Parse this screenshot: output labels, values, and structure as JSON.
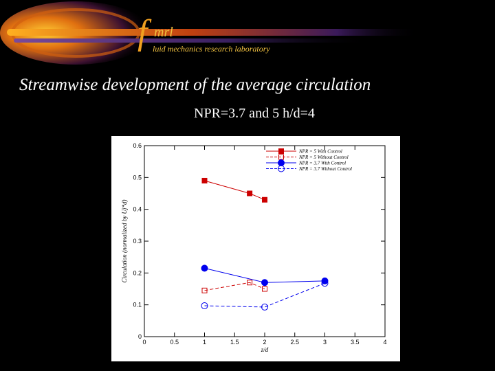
{
  "header": {
    "logo_f": "f",
    "logo_mrl": "mrl",
    "logo_subtitle": "luid mechanics research laboratory",
    "title": "Streamwise development of the average circulation",
    "subtitle": "NPR=3.7 and 5 h/d=4"
  },
  "colors": {
    "background": "#000000",
    "banner_orange": "#f0a020",
    "banner_purple": "#5a2a7a",
    "series_red": "#cc0000",
    "series_blue": "#0000ee"
  },
  "chart_data": {
    "type": "line",
    "title": "",
    "xlabel": "z/d",
    "ylabel": "Circulation (normalized by Uj*d)",
    "xlim": [
      0,
      4
    ],
    "ylim": [
      0,
      0.6
    ],
    "xticks": [
      "0",
      "0.5",
      "1",
      "1.5",
      "2",
      "2.5",
      "3",
      "3.5",
      "4"
    ],
    "yticks": [
      "0",
      "0.1",
      "0.2",
      "0.3",
      "0.4",
      "0.5",
      "0.6"
    ],
    "grid": false,
    "legend": "top-right",
    "series": [
      {
        "name": "NPR = 5 With Control",
        "color": "#cc0000",
        "marker": "filled-square",
        "dash": "solid",
        "x": [
          1,
          1.75,
          2
        ],
        "y": [
          0.49,
          0.45,
          0.43
        ]
      },
      {
        "name": "NPR = 5 Without Control",
        "color": "#cc0000",
        "marker": "open-square",
        "dash": "dashed",
        "x": [
          1,
          1.75,
          2
        ],
        "y": [
          0.145,
          0.17,
          0.15
        ]
      },
      {
        "name": "NPR = 3.7 With Control",
        "color": "#0000ee",
        "marker": "filled-circle",
        "dash": "solid",
        "x": [
          1,
          2,
          3
        ],
        "y": [
          0.215,
          0.17,
          0.175
        ]
      },
      {
        "name": "NPR = 3.7 Without Control",
        "color": "#0000ee",
        "marker": "open-circle",
        "dash": "dashed",
        "x": [
          1,
          2,
          3
        ],
        "y": [
          0.097,
          0.093,
          0.168
        ]
      }
    ]
  }
}
